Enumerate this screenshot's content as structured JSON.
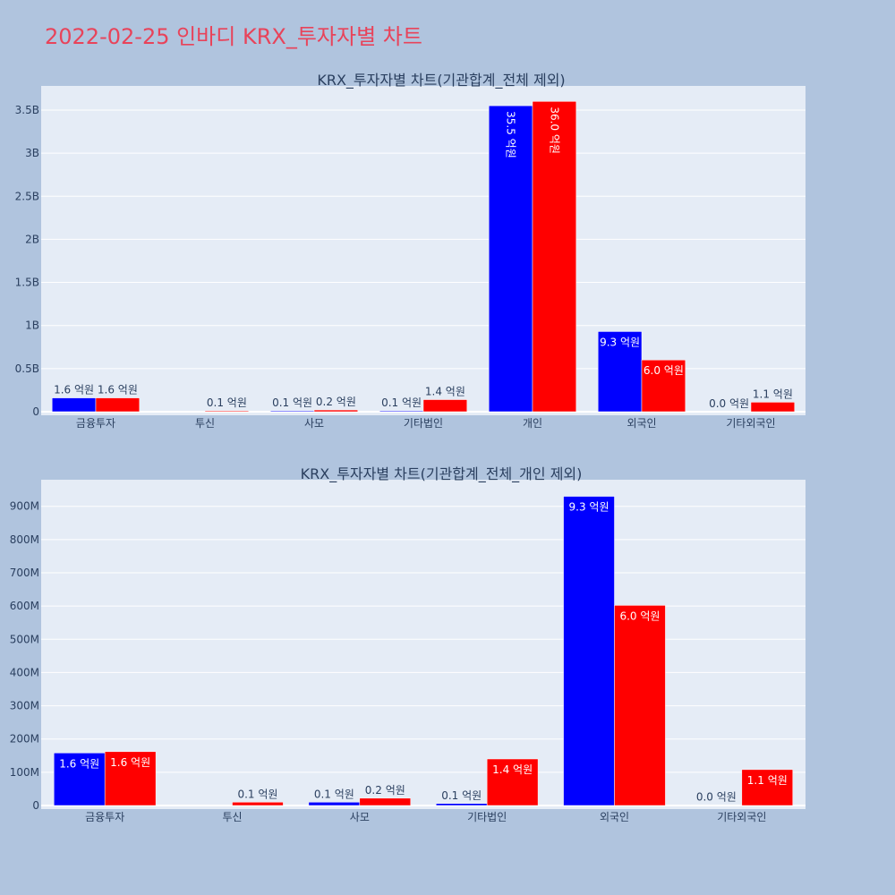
{
  "page": {
    "title": "2022-02-25 인바디 KRX_투자자별 차트",
    "title_color": "#e8435a",
    "background": "#b0c4de",
    "plot_background": "#e5ecf6"
  },
  "colors": {
    "buy": "#0000ff",
    "sell": "#ff0000"
  },
  "chart_data": [
    {
      "type": "bar",
      "title": "KRX_투자자별 차트(기관합계_전체 제외)",
      "categories": [
        "금융투자",
        "투신",
        "사모",
        "기타법인",
        "개인",
        "외국인",
        "기타외국인"
      ],
      "series": [
        {
          "color": "#0000ff",
          "values": [
            160000000,
            0,
            10000000,
            10000000,
            3550000000,
            930000000,
            0
          ],
          "labels": [
            "1.6 억원",
            "",
            "0.1 억원",
            "0.1 억원",
            "35.5 억원",
            "9.3 억원",
            "0.0 억원"
          ]
        },
        {
          "color": "#ff0000",
          "values": [
            160000000,
            10000000,
            20000000,
            140000000,
            3600000000,
            600000000,
            110000000
          ],
          "labels": [
            "1.6 억원",
            "0.1 억원",
            "0.2 억원",
            "1.4 억원",
            "36.0 억원",
            "6.0 억원",
            "1.1 억원"
          ]
        }
      ],
      "yticks": [
        0,
        500000000,
        1000000000,
        1500000000,
        2000000000,
        2500000000,
        3000000000,
        3500000000
      ],
      "ytick_labels": [
        "0",
        "0.5B",
        "1B",
        "1.5B",
        "2B",
        "2.5B",
        "3B",
        "3.5B"
      ],
      "ylim": [
        0,
        3780000000
      ],
      "grid": true
    },
    {
      "type": "bar",
      "title": "KRX_투자자별 차트(기관합계_전체_개인 제외)",
      "categories": [
        "금융투자",
        "투신",
        "사모",
        "기타법인",
        "외국인",
        "기타외국인"
      ],
      "series": [
        {
          "color": "#0000ff",
          "values": [
            158000000,
            0,
            10000000,
            6000000,
            930000000,
            1000000
          ],
          "labels": [
            "1.6 억원",
            "",
            "0.1 억원",
            "0.1 억원",
            "9.3 억원",
            "0.0 억원"
          ]
        },
        {
          "color": "#ff0000",
          "values": [
            162000000,
            10000000,
            22000000,
            140000000,
            602000000,
            108000000
          ],
          "labels": [
            "1.6 억원",
            "0.1 억원",
            "0.2 억원",
            "1.4 억원",
            "6.0 억원",
            "1.1 억원"
          ]
        }
      ],
      "yticks": [
        0,
        100000000,
        200000000,
        300000000,
        400000000,
        500000000,
        600000000,
        700000000,
        800000000,
        900000000
      ],
      "ytick_labels": [
        "0",
        "100M",
        "200M",
        "300M",
        "400M",
        "500M",
        "600M",
        "700M",
        "800M",
        "900M"
      ],
      "ylim": [
        0,
        980000000
      ],
      "grid": true
    }
  ]
}
